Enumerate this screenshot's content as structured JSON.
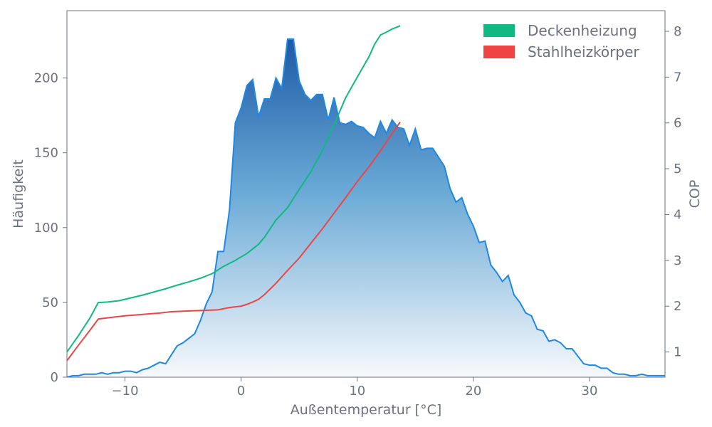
{
  "chart_data": {
    "type": "area",
    "xlabel": "Außentemperatur [°C]",
    "ylabel_left": "Häufigkeit",
    "ylabel_right": "COP",
    "xlim": [
      -15,
      36.5
    ],
    "ylim_left": [
      0,
      245
    ],
    "ylim_right": [
      0.45,
      8.45
    ],
    "grid": false,
    "legend_position": "top-right",
    "x_ticks": [
      -10,
      0,
      10,
      20,
      30
    ],
    "x_tick_labels": [
      "−10",
      "0",
      "10",
      "20",
      "30"
    ],
    "y_left_ticks": [
      0,
      50,
      100,
      150,
      200
    ],
    "y_left_tick_labels": [
      "0",
      "50",
      "100",
      "150",
      "200"
    ],
    "y_right_ticks": [
      1,
      2,
      3,
      4,
      5,
      6,
      7,
      8
    ],
    "y_right_tick_labels": [
      "1",
      "2",
      "3",
      "4",
      "5",
      "6",
      "7",
      "8"
    ],
    "frequency": {
      "axis": "left",
      "color": "#1e88e5",
      "x": [
        -15,
        -14.5,
        -14,
        -13.5,
        -13,
        -12.5,
        -12,
        -11.5,
        -11,
        -10.5,
        -10,
        -9.5,
        -9,
        -8.5,
        -8,
        -7.5,
        -7,
        -6.5,
        -6,
        -5.5,
        -5,
        -4.5,
        -4,
        -3.5,
        -3,
        -2.5,
        -2,
        -1.5,
        -1,
        -0.5,
        0,
        0.5,
        1,
        1.5,
        2,
        2.5,
        3,
        3.5,
        4,
        4.5,
        5,
        5.5,
        6,
        6.5,
        7,
        7.5,
        8,
        8.5,
        9,
        9.5,
        10,
        10.5,
        11,
        11.5,
        12,
        12.5,
        13,
        13.5,
        14,
        14.5,
        15,
        15.5,
        16,
        16.5,
        17,
        17.5,
        18,
        18.5,
        19,
        19.5,
        20,
        20.5,
        21,
        21.5,
        22,
        22.5,
        23,
        23.5,
        24,
        24.5,
        25,
        25.5,
        26,
        26.5,
        27,
        27.5,
        28,
        28.5,
        29,
        29.5,
        30,
        30.5,
        31,
        31.5,
        32,
        32.5,
        33,
        33.5,
        34,
        34.5,
        35,
        35.5,
        36,
        36.5
      ],
      "values": [
        0,
        1,
        1,
        2,
        2,
        2,
        3,
        2,
        3,
        3,
        4,
        4,
        3,
        5,
        6,
        8,
        10,
        9,
        15,
        21,
        23,
        26,
        29,
        38,
        49,
        57,
        84,
        84,
        112,
        170,
        180,
        195,
        199,
        174,
        186,
        186,
        200,
        193,
        226,
        226,
        198,
        189,
        185,
        189,
        189,
        172,
        187,
        170,
        169,
        171,
        168,
        167,
        163,
        160,
        171,
        163,
        172,
        167,
        166,
        155,
        166,
        152,
        153,
        153,
        147,
        141,
        126,
        117,
        120,
        109,
        101,
        90,
        91,
        75,
        70,
        64,
        68,
        55,
        50,
        43,
        41,
        32,
        31,
        24,
        25,
        23,
        19,
        19,
        14,
        9,
        8,
        8,
        6,
        6,
        3,
        2,
        2,
        1,
        1,
        2,
        1,
        1,
        1,
        1
      ]
    },
    "series": [
      {
        "name": "Deckenheizung",
        "axis": "right",
        "color": "#10b981",
        "x": [
          -15,
          -14,
          -13,
          -12.3,
          -11.5,
          -10.5,
          -9.5,
          -8.5,
          -7.5,
          -6.5,
          -5.5,
          -4.5,
          -3.5,
          -2.5,
          -1.5,
          -0.5,
          0.5,
          1.5,
          2,
          3,
          4,
          5,
          6,
          7,
          8,
          9,
          10,
          11,
          11.5,
          12,
          12.5,
          13,
          13.5,
          13.7
        ],
        "values": [
          1.0,
          1.36,
          1.75,
          2.08,
          2.09,
          2.12,
          2.18,
          2.24,
          2.31,
          2.38,
          2.46,
          2.53,
          2.61,
          2.71,
          2.87,
          3.0,
          3.15,
          3.35,
          3.5,
          3.88,
          4.15,
          4.55,
          4.93,
          5.4,
          5.96,
          6.55,
          7.0,
          7.44,
          7.72,
          7.92,
          7.98,
          8.05,
          8.1,
          8.12
        ]
      },
      {
        "name": "Stahlheizkörper",
        "axis": "right",
        "color": "#ef4444",
        "x": [
          -15,
          -14,
          -13,
          -12.3,
          -11,
          -10,
          -9,
          -8,
          -7,
          -6,
          -5,
          -4,
          -3,
          -2,
          -1,
          0,
          0.5,
          1,
          1.5,
          2,
          3,
          4,
          5,
          6,
          7,
          8,
          9,
          10,
          11,
          12,
          13,
          13.7
        ],
        "values": [
          0.81,
          1.15,
          1.48,
          1.72,
          1.76,
          1.79,
          1.81,
          1.83,
          1.85,
          1.88,
          1.89,
          1.9,
          1.91,
          1.92,
          1.97,
          2.0,
          2.04,
          2.09,
          2.15,
          2.25,
          2.5,
          2.78,
          3.05,
          3.37,
          3.69,
          4.03,
          4.37,
          4.72,
          5.04,
          5.39,
          5.77,
          6.02
        ]
      }
    ]
  }
}
